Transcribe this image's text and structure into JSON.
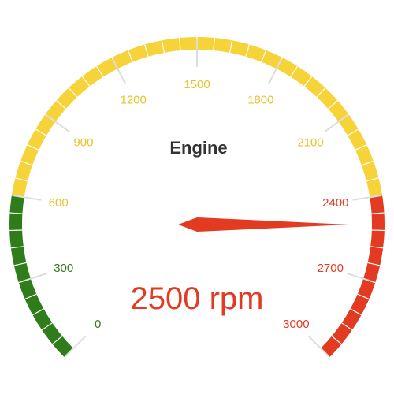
{
  "chart_data": {
    "type": "gauge",
    "title": "Engine",
    "value": 2500,
    "unit": "rpm",
    "value_text": "2500 rpm",
    "min": 0,
    "max": 3000,
    "major_ticks": [
      0,
      300,
      600,
      900,
      1200,
      1500,
      1800,
      2100,
      2400,
      2700,
      3000
    ],
    "tick_labels": [
      "0",
      "300",
      "600",
      "900",
      "1200",
      "1500",
      "1800",
      "2100",
      "2400",
      "2700",
      "3000"
    ],
    "bands": [
      {
        "from": 0,
        "to": 600,
        "color": "#2e7d1a"
      },
      {
        "from": 600,
        "to": 2400,
        "color": "#f7d33a"
      },
      {
        "from": 2400,
        "to": 3000,
        "color": "#e33a22"
      }
    ],
    "needle_color": "#e33a22",
    "value_color": "#e33a22"
  }
}
